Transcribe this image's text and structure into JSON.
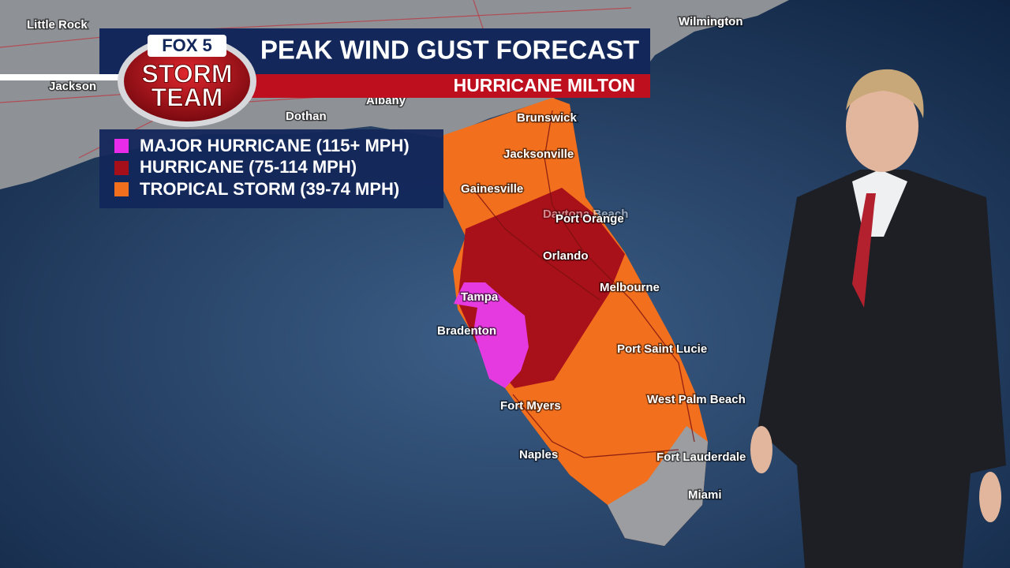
{
  "header": {
    "logo": {
      "brand": "FOX 5",
      "line1": "STORM",
      "line2": "TEAM"
    },
    "title": "PEAK WIND GUST FORECAST",
    "subtitle": "HURRICANE MILTON"
  },
  "legend": {
    "items": [
      {
        "label": "MAJOR HURRICANE (115+ MPH)"
      },
      {
        "label": "HURRICANE (75-114 MPH)"
      },
      {
        "label": "TROPICAL STORM (39-74 MPH)"
      }
    ]
  },
  "cities": [
    "Little Rock",
    "Jackson",
    "Albany",
    "Dothan",
    "Brunswick",
    "Jacksonville",
    "Gainesville",
    "Daytona Beach",
    "Port Orange",
    "Orlando",
    "Melbourne",
    "Tampa",
    "Bradenton",
    "Port Saint Lucie",
    "West Palm Beach",
    "Fort Myers",
    "Naples",
    "Fort Lauderdale",
    "Miami",
    "Wilmington"
  ]
}
